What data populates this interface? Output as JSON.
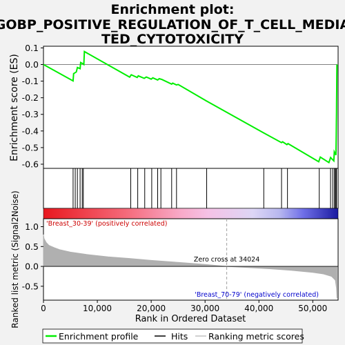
{
  "title_lines": [
    "Enrichment plot:",
    "GOBP_POSITIVE_REGULATION_OF_T_CELL_MEDIA",
    "TED_CYTOTOXICITY"
  ],
  "chart_data": {
    "type": "line",
    "es_panel": {
      "ylabel": "Enrichment score (ES)",
      "ylim": [
        -0.625,
        0.11
      ],
      "yticks": [
        0.1,
        0.0,
        -0.1,
        -0.2,
        -0.3,
        -0.4,
        -0.5,
        -0.6
      ],
      "ytick_labels": [
        "0.1",
        "0.0",
        "-0.1",
        "-0.2",
        "-0.3",
        "-0.4",
        "-0.5",
        "-0.6"
      ],
      "line_color": "#00ee00",
      "points": [
        [
          0,
          0.0
        ],
        [
          5500,
          -0.099
        ],
        [
          5600,
          -0.055
        ],
        [
          6100,
          -0.045
        ],
        [
          6300,
          -0.018
        ],
        [
          6800,
          -0.025
        ],
        [
          6900,
          0.012
        ],
        [
          7300,
          0.005
        ],
        [
          7500,
          0.0
        ],
        [
          7600,
          0.078
        ],
        [
          16000,
          -0.076
        ],
        [
          16300,
          -0.062
        ],
        [
          17400,
          -0.078
        ],
        [
          17600,
          -0.068
        ],
        [
          18700,
          -0.083
        ],
        [
          19100,
          -0.075
        ],
        [
          20000,
          -0.088
        ],
        [
          20300,
          -0.08
        ],
        [
          21200,
          -0.093
        ],
        [
          21500,
          -0.085
        ],
        [
          22000,
          -0.09
        ],
        [
          23800,
          -0.118
        ],
        [
          24000,
          -0.112
        ],
        [
          24700,
          -0.123
        ],
        [
          25000,
          -0.12
        ],
        [
          30300,
          -0.22
        ],
        [
          40800,
          -0.41
        ],
        [
          44200,
          -0.47
        ],
        [
          44400,
          -0.465
        ],
        [
          45200,
          -0.482
        ],
        [
          45400,
          -0.476
        ],
        [
          51100,
          -0.585
        ],
        [
          51400,
          -0.557
        ],
        [
          53000,
          -0.59
        ],
        [
          53300,
          -0.56
        ],
        [
          53900,
          -0.58
        ],
        [
          54000,
          -0.525
        ],
        [
          54300,
          -0.545
        ],
        [
          54350,
          -0.43
        ],
        [
          54380,
          -0.35
        ],
        [
          54400,
          -0.29
        ],
        [
          54420,
          -0.225
        ],
        [
          54440,
          -0.15
        ],
        [
          54460,
          -0.08
        ],
        [
          54480,
          0.0
        ]
      ]
    },
    "hits": [
      5500,
      5900,
      6300,
      6800,
      7200,
      7400,
      16200,
      17500,
      18800,
      20100,
      21200,
      21800,
      23800,
      24700,
      30300,
      40900,
      44200,
      45300,
      51200,
      53300,
      53700,
      54000,
      54200,
      54300,
      54400
    ],
    "bar_gradient_stops": [
      {
        "pos": 0.0,
        "color": "#e8181f"
      },
      {
        "pos": 0.28,
        "color": "#f56a7a"
      },
      {
        "pos": 0.46,
        "color": "#f8a8c6"
      },
      {
        "pos": 0.56,
        "color": "#f5c2e6"
      },
      {
        "pos": 0.71,
        "color": "#ddd6f6"
      },
      {
        "pos": 0.8,
        "color": "#b8b8ef"
      },
      {
        "pos": 0.88,
        "color": "#7070e8"
      },
      {
        "pos": 1.0,
        "color": "#1a1aa0"
      }
    ],
    "ranking_panel": {
      "ylabel": "Ranked list metric (Signal2Noise)",
      "ylim": [
        -0.85,
        1.2
      ],
      "yticks": [
        1.0,
        0.5,
        0.0,
        -0.5
      ],
      "ytick_labels": [
        "1.0",
        "0.5",
        "0.0",
        "-0.5"
      ],
      "curve": [
        [
          0,
          0.8
        ],
        [
          100,
          0.7
        ],
        [
          500,
          0.6
        ],
        [
          1000,
          0.53
        ],
        [
          2000,
          0.47
        ],
        [
          3000,
          0.42
        ],
        [
          5000,
          0.36
        ],
        [
          8000,
          0.3
        ],
        [
          12000,
          0.24
        ],
        [
          16000,
          0.2
        ],
        [
          20000,
          0.15
        ],
        [
          25000,
          0.1
        ],
        [
          30000,
          0.05
        ],
        [
          34024,
          0.0
        ],
        [
          38000,
          -0.03
        ],
        [
          42000,
          -0.06
        ],
        [
          46000,
          -0.1
        ],
        [
          50000,
          -0.15
        ],
        [
          52000,
          -0.19
        ],
        [
          53500,
          -0.25
        ],
        [
          54200,
          -0.35
        ],
        [
          54400,
          -0.55
        ],
        [
          54500,
          -0.8
        ]
      ],
      "zero_cross_label": "Zero cross at 34024",
      "zero_cross_x": 34024,
      "pos_label": "'Breast_30-39' (positively correlated)",
      "neg_label": "'Breast_70-79' (negatively correlated)",
      "pos_color": "#cc0000",
      "neg_color": "#0000cc",
      "fill_color": "#b0b0b0"
    },
    "xlabel": "Rank in Ordered Dataset",
    "xlim": [
      0,
      54700
    ],
    "xticks": [
      0,
      10000,
      20000,
      30000,
      40000,
      50000
    ],
    "xtick_labels": [
      "0",
      "10,000",
      "20,000",
      "30,000",
      "40,000",
      "50,000"
    ],
    "legend": [
      {
        "label": "Enrichment profile",
        "color": "#00ee00"
      },
      {
        "label": "Hits",
        "color": "#000000"
      },
      {
        "label": "Ranking metric scores",
        "color": "#c0c0c0"
      }
    ]
  }
}
